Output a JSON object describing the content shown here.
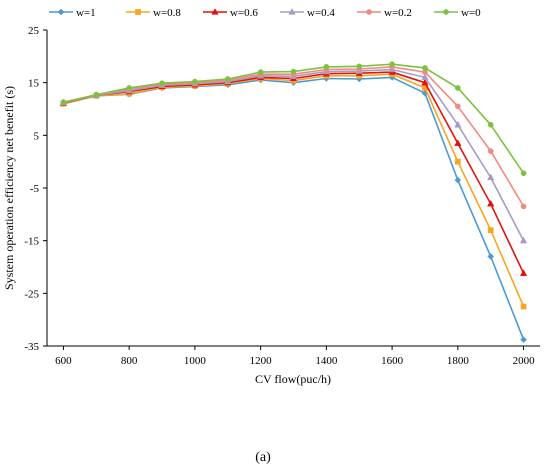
{
  "chart_data": {
    "type": "line",
    "xlabel": "CV flow(puc/h)",
    "ylabel": "System operation efficiency net benefit (s)",
    "caption": "(a)",
    "x": [
      600,
      700,
      800,
      900,
      1000,
      1100,
      1200,
      1300,
      1400,
      1500,
      1600,
      1700,
      1800,
      1900,
      2000
    ],
    "xlim": [
      550,
      2050
    ],
    "ylim": [
      -35,
      25
    ],
    "xticks": [
      "600",
      "800",
      "1000",
      "1200",
      "1400",
      "1600",
      "1800",
      "2000"
    ],
    "yticks": [
      "25",
      "15",
      "5",
      "-5",
      "-15",
      "-25",
      "-35"
    ],
    "xtick_values": [
      600,
      800,
      1000,
      1200,
      1400,
      1600,
      1800,
      2000
    ],
    "ytick_values": [
      25,
      15,
      5,
      -5,
      -15,
      -25,
      -35
    ],
    "legend_position": "top",
    "grid": false,
    "series": [
      {
        "name": "w=1",
        "color": "#4a9ad6",
        "marker": "diamond",
        "values": [
          11.0,
          12.5,
          12.8,
          14.0,
          14.3,
          14.6,
          15.5,
          15.0,
          15.8,
          15.7,
          16.0,
          13.0,
          -3.5,
          -18.0,
          -33.8
        ]
      },
      {
        "name": "w=0.8",
        "color": "#f5a623",
        "marker": "square",
        "values": [
          11.0,
          12.5,
          12.9,
          14.1,
          14.4,
          14.8,
          15.8,
          15.4,
          16.3,
          16.3,
          16.6,
          14.0,
          0.0,
          -13.0,
          -27.5
        ]
      },
      {
        "name": "w=0.6",
        "color": "#e3120b",
        "marker": "triangle",
        "values": [
          11.1,
          12.6,
          13.3,
          14.3,
          14.6,
          15.0,
          16.0,
          15.8,
          16.7,
          16.8,
          17.0,
          15.0,
          3.5,
          -8.0,
          -21.2
        ]
      },
      {
        "name": "w=0.4",
        "color": "#a79ac9",
        "marker": "triangle",
        "values": [
          11.2,
          12.6,
          13.5,
          14.5,
          14.8,
          15.2,
          16.3,
          16.2,
          17.1,
          17.2,
          17.5,
          16.0,
          7.0,
          -3.0,
          -15.0
        ]
      },
      {
        "name": "w=0.2",
        "color": "#f08c7c",
        "marker": "circle",
        "values": [
          11.2,
          12.7,
          13.8,
          14.7,
          15.0,
          15.5,
          16.6,
          16.6,
          17.5,
          17.6,
          18.0,
          17.0,
          10.5,
          2.0,
          -8.5
        ]
      },
      {
        "name": "w=0",
        "color": "#7cc242",
        "marker": "circle",
        "values": [
          11.3,
          12.7,
          14.0,
          14.9,
          15.2,
          15.7,
          17.0,
          17.1,
          18.0,
          18.1,
          18.5,
          17.8,
          14.0,
          7.0,
          -2.2
        ]
      }
    ]
  }
}
